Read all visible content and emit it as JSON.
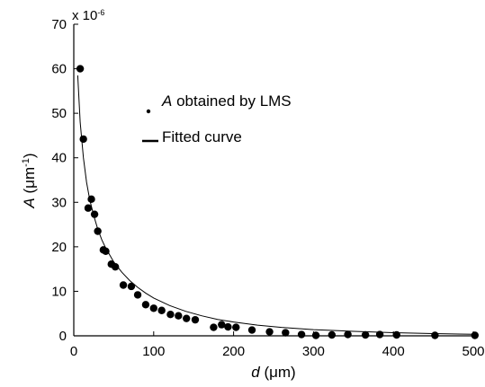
{
  "chart_data": {
    "type": "scatter",
    "xlabel": {
      "var": "d",
      "unit": " (μm)"
    },
    "ylabel": {
      "var": "A",
      "unit_pre": " (μm",
      "unit_sup": "-1",
      "unit_post": ")"
    },
    "y_multiplier": {
      "base": "x 10",
      "exp": "-6"
    },
    "xlim": [
      0,
      500
    ],
    "ylim": [
      0,
      70
    ],
    "x_ticks": [
      0,
      100,
      200,
      300,
      400,
      500
    ],
    "y_ticks": [
      0,
      10,
      20,
      30,
      40,
      50,
      60,
      70
    ],
    "legend_position": "upper-middle",
    "grid": false,
    "series": [
      {
        "name": "A obtained by LMS",
        "name_italic": "A",
        "name_rest": " obtained by LMS",
        "kind": "scatter",
        "points": [
          [
            8,
            60
          ],
          [
            12,
            44.2
          ],
          [
            18,
            28.7
          ],
          [
            22,
            30.7
          ],
          [
            26,
            27.3
          ],
          [
            30,
            23.5
          ],
          [
            37,
            19.3
          ],
          [
            40,
            19
          ],
          [
            47,
            16.1
          ],
          [
            52,
            15.5
          ],
          [
            62,
            11.4
          ],
          [
            72,
            11.1
          ],
          [
            80,
            9.2
          ],
          [
            90,
            7
          ],
          [
            100,
            6.2
          ],
          [
            110,
            5.7
          ],
          [
            121,
            4.8
          ],
          [
            131,
            4.5
          ],
          [
            141,
            3.9
          ],
          [
            152,
            3.6
          ],
          [
            175,
            1.9
          ],
          [
            185,
            2.5
          ],
          [
            193,
            2
          ],
          [
            203,
            1.9
          ],
          [
            223,
            1.3
          ],
          [
            245,
            0.9
          ],
          [
            265,
            0.7
          ],
          [
            285,
            0.3
          ],
          [
            303,
            0.1
          ],
          [
            323,
            0.2
          ],
          [
            343,
            0.3
          ],
          [
            365,
            0.2
          ],
          [
            383,
            0.3
          ],
          [
            404,
            0.2
          ],
          [
            452,
            0.1
          ],
          [
            502,
            0.1
          ]
        ]
      },
      {
        "name": "Fitted curve",
        "kind": "line",
        "points": [
          [
            5,
            58.5
          ],
          [
            8,
            48
          ],
          [
            12,
            40
          ],
          [
            16,
            34.5
          ],
          [
            20,
            30.5
          ],
          [
            25,
            27
          ],
          [
            30,
            24
          ],
          [
            35,
            21.6
          ],
          [
            40,
            19.7
          ],
          [
            50,
            16.6
          ],
          [
            60,
            14.3
          ],
          [
            70,
            12.4
          ],
          [
            80,
            10.9
          ],
          [
            90,
            9.6
          ],
          [
            100,
            8.5
          ],
          [
            120,
            6.8
          ],
          [
            140,
            5.5
          ],
          [
            160,
            4.5
          ],
          [
            180,
            3.7
          ],
          [
            200,
            3.1
          ],
          [
            230,
            2.4
          ],
          [
            260,
            1.9
          ],
          [
            300,
            1.4
          ],
          [
            350,
            1.0
          ],
          [
            400,
            0.7
          ],
          [
            450,
            0.5
          ],
          [
            500,
            0.35
          ]
        ]
      }
    ]
  }
}
